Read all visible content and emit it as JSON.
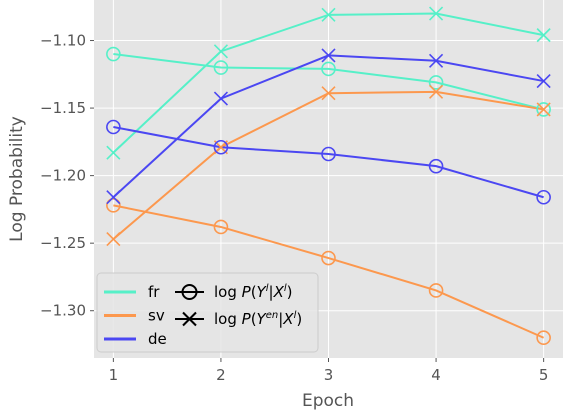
{
  "chart_data": {
    "type": "line",
    "xlabel": "Epoch",
    "ylabel": "Log Probability",
    "x": [
      1,
      2,
      3,
      4,
      5
    ],
    "xticks": [
      "1",
      "2",
      "3",
      "4",
      "5"
    ],
    "ylim": [
      -1.335,
      -1.07
    ],
    "xlim": [
      0.82,
      5.18
    ],
    "yticks": [
      -1.3,
      -1.25,
      -1.2,
      -1.15,
      -1.1
    ],
    "yticklabels": [
      "−1.30",
      "−1.25",
      "−1.20",
      "−1.15",
      "−1.10"
    ],
    "grid": true,
    "legend_placement": "bottom-left",
    "series": [
      {
        "language": "fr",
        "marker": "circle",
        "color": "#56f0c8",
        "values": [
          -1.11,
          -1.12,
          -1.121,
          -1.131,
          -1.151
        ]
      },
      {
        "language": "fr",
        "marker": "x",
        "color": "#56f0c8",
        "values": [
          -1.183,
          -1.108,
          -1.081,
          -1.08,
          -1.096
        ]
      },
      {
        "language": "sv",
        "marker": "circle",
        "color": "#fc984e",
        "values": [
          -1.222,
          -1.238,
          -1.261,
          -1.285,
          -1.32
        ]
      },
      {
        "language": "sv",
        "marker": "x",
        "color": "#fc984e",
        "values": [
          -1.247,
          -1.179,
          -1.139,
          -1.138,
          -1.151
        ]
      },
      {
        "language": "de",
        "marker": "circle",
        "color": "#4b47f2",
        "values": [
          -1.164,
          -1.179,
          -1.184,
          -1.193,
          -1.216
        ]
      },
      {
        "language": "de",
        "marker": "x",
        "color": "#4b47f2",
        "values": [
          -1.216,
          -1.143,
          -1.111,
          -1.115,
          -1.13
        ]
      }
    ],
    "legend_languages": [
      {
        "label": "fr",
        "color": "#56f0c8"
      },
      {
        "label": "sv",
        "color": "#fc984e"
      },
      {
        "label": "de",
        "color": "#4b47f2"
      }
    ],
    "legend_markers": [
      {
        "marker": "circle",
        "label": "log P(Y^l | X^l)"
      },
      {
        "marker": "x",
        "label": "log P(Y^en | X^l)"
      }
    ]
  }
}
